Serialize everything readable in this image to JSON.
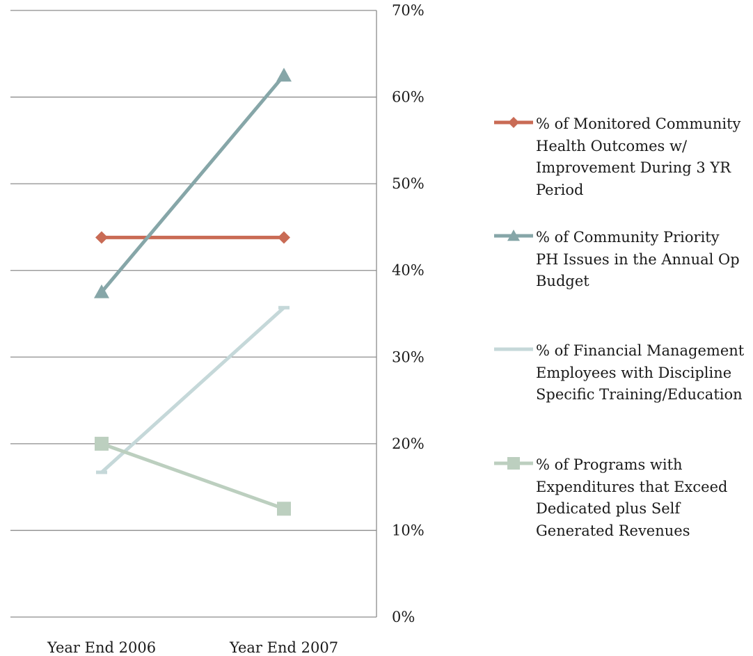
{
  "chart_data": {
    "type": "line",
    "categories": [
      "Year End 2006",
      "Year End 2007"
    ],
    "y_ticks": [
      "0%",
      "10%",
      "20%",
      "30%",
      "40%",
      "50%",
      "60%",
      "70%"
    ],
    "ylim": [
      0,
      70
    ],
    "y_axis_side": "right",
    "grid": true,
    "legend_position": "right",
    "series": [
      {
        "name": "% of Monitored Community Health Outcomes w/ Improvement During 3 YR Period",
        "values": [
          43.8,
          43.8
        ],
        "color": "#c96b55",
        "marker": "diamond"
      },
      {
        "name": "% of Community Priority PH Issues in the Annual Op Budget",
        "values": [
          37.5,
          62.5
        ],
        "color": "#86a6a8",
        "marker": "triangle"
      },
      {
        "name": "% of Financial Management Employees with Discipline Specific Training/Education",
        "values": [
          16.7,
          35.7
        ],
        "color": "#c5d8d9",
        "marker": "dash"
      },
      {
        "name": "% of Programs with Expenditures that Exceed Dedicated plus Self Generated Revenues",
        "values": [
          20.0,
          12.5
        ],
        "color": "#bccfbf",
        "marker": "square"
      }
    ]
  }
}
